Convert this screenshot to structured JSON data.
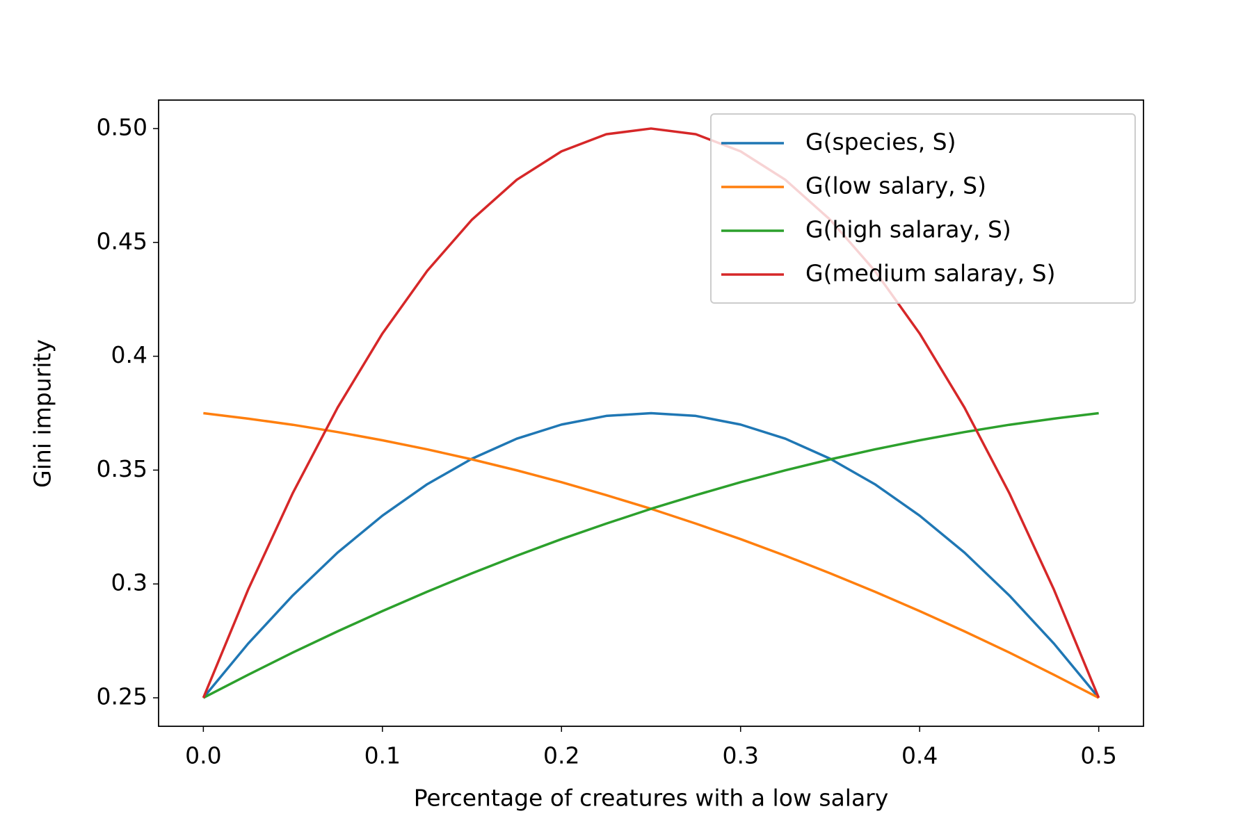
{
  "chart_data": {
    "type": "line",
    "xlabel": "Percentage of creatures with a low salary",
    "ylabel": "Gini impurity",
    "x": [
      0,
      0.025,
      0.05,
      0.075,
      0.1,
      0.125,
      0.15,
      0.175,
      0.2,
      0.225,
      0.25,
      0.275,
      0.3,
      0.325,
      0.35,
      0.375,
      0.4,
      0.425,
      0.45,
      0.475,
      0.5
    ],
    "series": [
      {
        "name": "G(species, S)",
        "color": "#1f77b4",
        "values": [
          0.25,
          0.2738,
          0.295,
          0.3138,
          0.33,
          0.3438,
          0.355,
          0.3638,
          0.37,
          0.3738,
          0.375,
          0.3738,
          0.37,
          0.3638,
          0.355,
          0.3438,
          0.33,
          0.3138,
          0.295,
          0.2738,
          0.25
        ]
      },
      {
        "name": "G(low salary, S)",
        "color": "#ff7f0e",
        "values": [
          0.375,
          0.3726,
          0.3699,
          0.3667,
          0.3631,
          0.3591,
          0.3547,
          0.3499,
          0.3447,
          0.339,
          0.333,
          0.3265,
          0.3197,
          0.3124,
          0.3047,
          0.2966,
          0.2881,
          0.2792,
          0.2699,
          0.2601,
          0.25
        ]
      },
      {
        "name": "G(high salaray, S)",
        "color": "#2ca02c",
        "values": [
          0.25,
          0.2601,
          0.2699,
          0.2792,
          0.2881,
          0.2966,
          0.3047,
          0.3124,
          0.3197,
          0.3265,
          0.333,
          0.339,
          0.3447,
          0.3499,
          0.3547,
          0.3591,
          0.3631,
          0.3667,
          0.3699,
          0.3726,
          0.375
        ]
      },
      {
        "name": "G(medium salaray, S)",
        "color": "#d62728",
        "values": [
          0.25,
          0.2975,
          0.34,
          0.3775,
          0.41,
          0.4375,
          0.46,
          0.4775,
          0.49,
          0.4975,
          0.5,
          0.4975,
          0.49,
          0.4775,
          0.46,
          0.4375,
          0.41,
          0.3775,
          0.34,
          0.2975,
          0.25
        ]
      }
    ],
    "xlim": [
      -0.025,
      0.525
    ],
    "xticks": [
      {
        "value": 0,
        "label": "0.0"
      },
      0.1,
      0.2,
      0.3,
      0.4,
      0.5
    ],
    "ylim": [
      0.2375,
      0.5125
    ],
    "yticks": [
      0.25,
      0.3,
      0.35,
      0.4,
      0.45,
      {
        "value": 0.5,
        "label": "0.50"
      }
    ],
    "legend": "upper right",
    "grid": false
  }
}
